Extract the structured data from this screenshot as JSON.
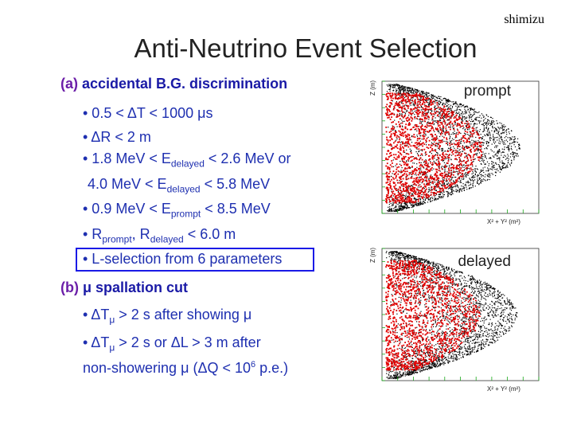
{
  "author": "shimizu",
  "title": "Anti-Neutrino Event Selection",
  "section_a": {
    "paren": "(a) ",
    "rest": "accidental B.G. discrimination"
  },
  "section_b": {
    "paren": "(b) ",
    "rest": "μ spallation cut"
  },
  "a_items": {
    "i1": "• 0.5 < ΔT < 1000 μs",
    "i2": "• ΔR < 2 m",
    "i3_pre": "• 1.8 MeV < E",
    "i3_sub": "delayed",
    "i3_post": " < 2.6 MeV or",
    "i4_pre": "4.0 MeV < E",
    "i4_sub": "delayed",
    "i4_post": " < 5.8 MeV",
    "i5_pre": "• 0.9 MeV < E",
    "i5_sub": "prompt",
    "i5_post": " < 8.5 MeV",
    "i6_pre": "• R",
    "i6_sub1": "prompt",
    "i6_mid": ", R",
    "i6_sub2": "delayed",
    "i6_post": " < 6.0 m",
    "i7": "• L-selection from 6 parameters"
  },
  "b_items": {
    "i1_pre": "• ΔT",
    "i1_sub": "μ",
    "i1_post": " > 2 s after showing μ",
    "i2_pre": "• ΔT",
    "i2_sub": "μ",
    "i2_post": " > 2 s or ΔL > 3 m after",
    "i3_pre": "non-showering μ (ΔQ < 10",
    "i3_sup": "6",
    "i3_post": " p.e.)"
  },
  "plots": {
    "prompt": {
      "label": "prompt",
      "ylabel": "Z (m)",
      "xlabel": "X² + Y² (m²)"
    },
    "delayed": {
      "label": "delayed",
      "ylabel": "Z (m)",
      "xlabel": "X² + Y² (m²)"
    }
  },
  "colors": {
    "title": "#222222",
    "section": "#6b1ea8",
    "text": "#1e2fb0",
    "box": "#1a1ae6",
    "points_inner": "#e00000",
    "points_outer": "#000000",
    "axis_ticks": "#1aa81a"
  }
}
